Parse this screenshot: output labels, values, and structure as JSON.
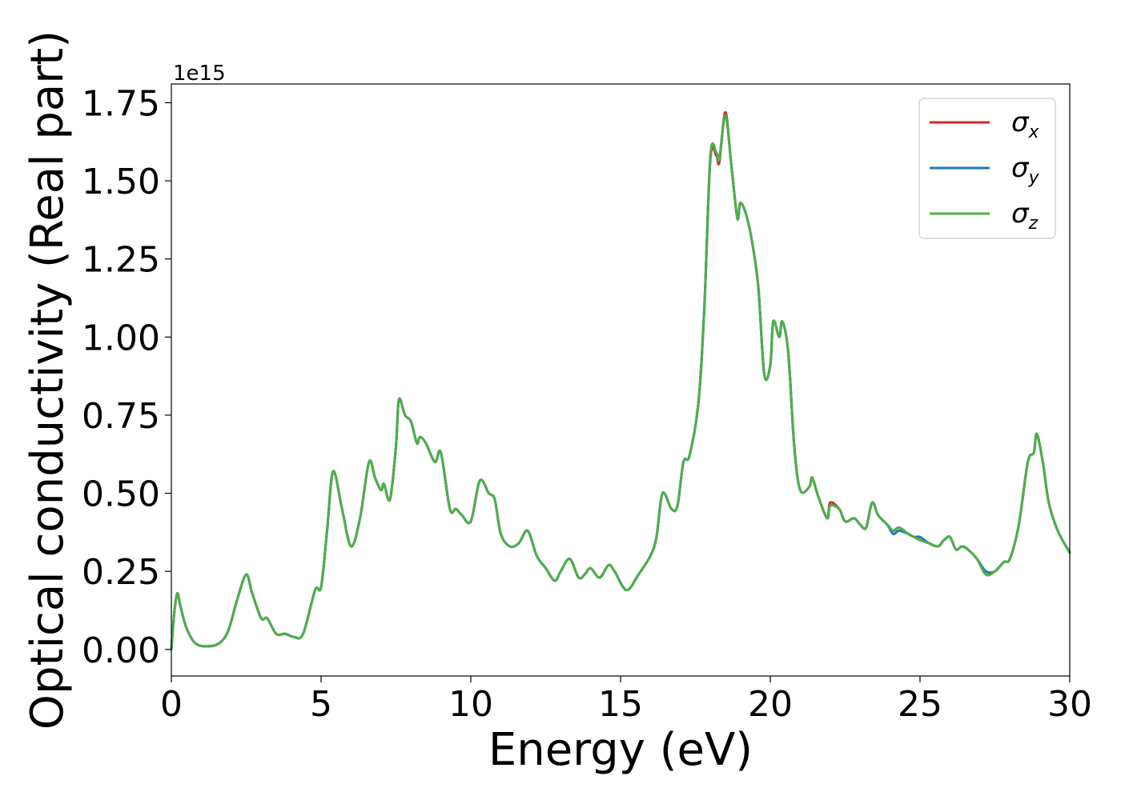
{
  "chart_data": {
    "type": "line",
    "xlabel": "Energy (eV)",
    "ylabel": "Optical conductivity (Real part)",
    "y_offset_text": "1e15",
    "y_scale": 1000000000000000.0,
    "xlim": [
      0,
      30
    ],
    "ylim": [
      -0.085,
      1.81
    ],
    "xticks": [
      0,
      5,
      10,
      15,
      20,
      25,
      30
    ],
    "xtick_labels": [
      "0",
      "5",
      "10",
      "15",
      "20",
      "25",
      "30"
    ],
    "yticks": [
      0.0,
      0.25,
      0.5,
      0.75,
      1.0,
      1.25,
      1.5,
      1.75
    ],
    "ytick_labels": [
      "0.00",
      "0.25",
      "0.50",
      "0.75",
      "1.00",
      "1.25",
      "1.50",
      "1.75"
    ],
    "grid": false,
    "legend_position": "top-right",
    "legend": [
      {
        "symbol": "σ",
        "subscript": "x",
        "color": "#d62728"
      },
      {
        "symbol": "σ",
        "subscript": "y",
        "color": "#1f77b4"
      },
      {
        "symbol": "σ",
        "subscript": "z",
        "color": "#4daf4a"
      }
    ],
    "x": [
      0,
      0.1,
      0.2,
      0.3,
      0.5,
      0.8,
      1.2,
      1.6,
      1.9,
      2.2,
      2.5,
      2.7,
      3.0,
      3.2,
      3.5,
      3.8,
      4.1,
      4.4,
      4.8,
      5.0,
      5.2,
      5.4,
      5.7,
      6.0,
      6.3,
      6.6,
      6.8,
      7.0,
      7.1,
      7.3,
      7.5,
      7.6,
      7.8,
      8.0,
      8.2,
      8.3,
      8.5,
      8.8,
      9.0,
      9.3,
      9.5,
      9.7,
      10.0,
      10.3,
      10.6,
      10.8,
      11.0,
      11.3,
      11.6,
      11.9,
      12.2,
      12.5,
      12.8,
      13.0,
      13.3,
      13.6,
      13.8,
      14.0,
      14.3,
      14.6,
      14.8,
      15.2,
      15.6,
      16.0,
      16.2,
      16.4,
      16.7,
      16.9,
      17.1,
      17.3,
      17.6,
      17.8,
      18.0,
      18.2,
      18.3,
      18.5,
      18.7,
      18.9,
      19.0,
      19.2,
      19.4,
      19.6,
      19.8,
      20.0,
      20.1,
      20.3,
      20.4,
      20.6,
      20.8,
      21.0,
      21.3,
      21.4,
      21.6,
      21.9,
      22.0,
      22.3,
      22.5,
      22.8,
      23.0,
      23.2,
      23.4,
      23.6,
      23.9,
      24.1,
      24.3,
      24.6,
      24.8,
      25.0,
      25.3,
      25.6,
      25.8,
      26.0,
      26.2,
      26.4,
      26.6,
      26.9,
      27.2,
      27.5,
      27.8,
      28.0,
      28.3,
      28.6,
      28.8,
      28.9,
      29.1,
      29.3,
      29.6,
      30.0
    ],
    "series": [
      {
        "name": "σx",
        "color": "#d62728",
        "values": [
          0.0,
          0.12,
          0.18,
          0.14,
          0.07,
          0.02,
          0.01,
          0.02,
          0.06,
          0.16,
          0.24,
          0.18,
          0.1,
          0.1,
          0.05,
          0.05,
          0.04,
          0.05,
          0.19,
          0.2,
          0.38,
          0.57,
          0.45,
          0.33,
          0.42,
          0.6,
          0.55,
          0.51,
          0.53,
          0.48,
          0.65,
          0.8,
          0.75,
          0.73,
          0.66,
          0.68,
          0.66,
          0.6,
          0.63,
          0.45,
          0.45,
          0.43,
          0.41,
          0.54,
          0.5,
          0.48,
          0.37,
          0.33,
          0.34,
          0.38,
          0.3,
          0.26,
          0.22,
          0.25,
          0.29,
          0.23,
          0.24,
          0.26,
          0.23,
          0.27,
          0.25,
          0.19,
          0.24,
          0.3,
          0.36,
          0.5,
          0.45,
          0.46,
          0.6,
          0.62,
          0.79,
          1.1,
          1.57,
          1.58,
          1.56,
          1.72,
          1.55,
          1.38,
          1.43,
          1.39,
          1.3,
          1.16,
          0.88,
          0.91,
          1.05,
          1.0,
          1.05,
          0.95,
          0.65,
          0.51,
          0.52,
          0.55,
          0.49,
          0.42,
          0.47,
          0.45,
          0.41,
          0.42,
          0.4,
          0.39,
          0.47,
          0.43,
          0.4,
          0.38,
          0.39,
          0.37,
          0.36,
          0.35,
          0.34,
          0.33,
          0.35,
          0.36,
          0.32,
          0.33,
          0.32,
          0.29,
          0.24,
          0.25,
          0.28,
          0.29,
          0.4,
          0.6,
          0.63,
          0.69,
          0.6,
          0.47,
          0.38,
          0.31
        ]
      },
      {
        "name": "σy",
        "color": "#1f77b4",
        "values": [
          0.0,
          0.12,
          0.18,
          0.14,
          0.07,
          0.02,
          0.01,
          0.02,
          0.06,
          0.16,
          0.24,
          0.18,
          0.1,
          0.1,
          0.05,
          0.05,
          0.04,
          0.05,
          0.19,
          0.2,
          0.38,
          0.57,
          0.45,
          0.33,
          0.42,
          0.6,
          0.55,
          0.51,
          0.53,
          0.48,
          0.65,
          0.8,
          0.75,
          0.73,
          0.66,
          0.68,
          0.66,
          0.6,
          0.63,
          0.45,
          0.45,
          0.43,
          0.41,
          0.54,
          0.5,
          0.48,
          0.37,
          0.33,
          0.34,
          0.38,
          0.3,
          0.26,
          0.22,
          0.25,
          0.29,
          0.23,
          0.24,
          0.26,
          0.23,
          0.27,
          0.25,
          0.19,
          0.24,
          0.3,
          0.36,
          0.5,
          0.45,
          0.46,
          0.6,
          0.62,
          0.79,
          1.1,
          1.58,
          1.59,
          1.57,
          1.71,
          1.55,
          1.38,
          1.43,
          1.39,
          1.3,
          1.16,
          0.88,
          0.91,
          1.05,
          1.0,
          1.05,
          0.95,
          0.65,
          0.51,
          0.52,
          0.55,
          0.49,
          0.42,
          0.46,
          0.45,
          0.41,
          0.42,
          0.4,
          0.39,
          0.47,
          0.43,
          0.4,
          0.37,
          0.38,
          0.37,
          0.36,
          0.36,
          0.34,
          0.33,
          0.35,
          0.36,
          0.32,
          0.33,
          0.32,
          0.29,
          0.25,
          0.25,
          0.28,
          0.29,
          0.4,
          0.6,
          0.63,
          0.69,
          0.6,
          0.47,
          0.38,
          0.31
        ]
      },
      {
        "name": "σz",
        "color": "#4daf4a",
        "values": [
          0.0,
          0.12,
          0.18,
          0.14,
          0.07,
          0.02,
          0.01,
          0.02,
          0.06,
          0.16,
          0.24,
          0.18,
          0.1,
          0.1,
          0.05,
          0.05,
          0.04,
          0.05,
          0.19,
          0.2,
          0.38,
          0.57,
          0.45,
          0.33,
          0.42,
          0.6,
          0.55,
          0.51,
          0.53,
          0.48,
          0.65,
          0.8,
          0.75,
          0.73,
          0.66,
          0.68,
          0.66,
          0.6,
          0.63,
          0.45,
          0.45,
          0.43,
          0.41,
          0.54,
          0.5,
          0.48,
          0.37,
          0.33,
          0.34,
          0.38,
          0.3,
          0.26,
          0.22,
          0.25,
          0.29,
          0.23,
          0.24,
          0.26,
          0.23,
          0.27,
          0.25,
          0.19,
          0.24,
          0.3,
          0.36,
          0.5,
          0.45,
          0.46,
          0.6,
          0.62,
          0.79,
          1.1,
          1.58,
          1.59,
          1.57,
          1.71,
          1.55,
          1.38,
          1.43,
          1.39,
          1.3,
          1.16,
          0.88,
          0.91,
          1.05,
          1.0,
          1.05,
          0.95,
          0.65,
          0.51,
          0.52,
          0.55,
          0.49,
          0.42,
          0.46,
          0.45,
          0.41,
          0.42,
          0.4,
          0.39,
          0.47,
          0.43,
          0.4,
          0.38,
          0.39,
          0.37,
          0.36,
          0.35,
          0.34,
          0.33,
          0.35,
          0.36,
          0.32,
          0.33,
          0.32,
          0.29,
          0.24,
          0.25,
          0.28,
          0.29,
          0.4,
          0.6,
          0.63,
          0.69,
          0.6,
          0.47,
          0.38,
          0.31
        ]
      }
    ]
  }
}
